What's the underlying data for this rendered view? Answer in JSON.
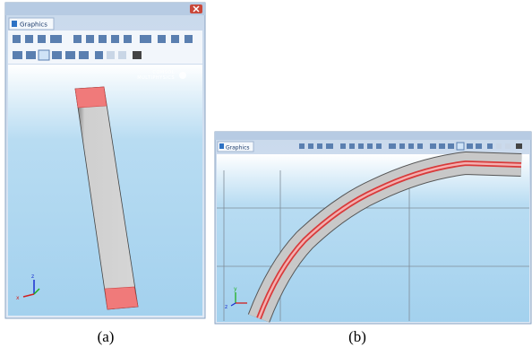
{
  "panels": [
    {
      "tab": "Graphics",
      "logo_line1": "COMSOL",
      "logo_line2": "MULTIPHYSICS",
      "axis_up": "z",
      "axis_left": "x",
      "caption": "(a)"
    },
    {
      "tab": "Graphics",
      "axis_up": "y",
      "axis_left": "z",
      "caption": "(b)"
    }
  ]
}
